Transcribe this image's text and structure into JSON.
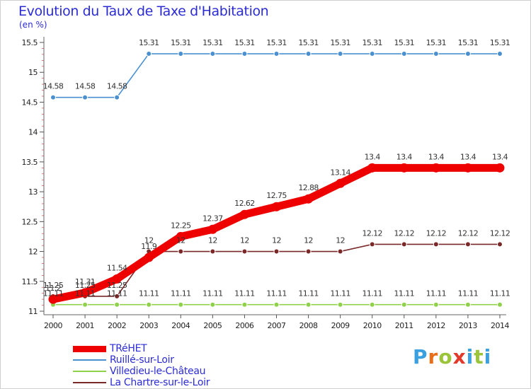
{
  "header": {
    "title": "Evolution du Taux de Taxe d'Habitation",
    "subtitle": "(en %)"
  },
  "chart_data": {
    "type": "line",
    "x": [
      "2000",
      "2001",
      "2002",
      "2003",
      "2004",
      "2005",
      "2006",
      "2007",
      "2008",
      "2009",
      "2010",
      "2011",
      "2012",
      "2013",
      "2014"
    ],
    "ylim": [
      11,
      15.5
    ],
    "yticks": [
      "11",
      "11.5",
      "12",
      "12.5",
      "13",
      "13.5",
      "14",
      "14.5",
      "15",
      "15.5"
    ],
    "grid": false,
    "legend_position": "bottom-left",
    "series": [
      {
        "name": "TRéHET",
        "color": "#ee0000",
        "values": [
          11.2,
          11.31,
          11.54,
          11.9,
          12.25,
          12.37,
          12.62,
          12.75,
          12.88,
          13.14,
          13.4,
          13.4,
          13.4,
          13.4,
          13.4
        ],
        "labels": [
          "11.2",
          "11.31",
          "11.54",
          "11.9",
          "12.25",
          "12.37",
          "12.62",
          "12.75",
          "12.88",
          "13.14",
          "13.4",
          "13.4",
          "13.4",
          "13.4",
          "13.4"
        ]
      },
      {
        "name": "Ruillé-sur-Loir",
        "color": "#4a90d0",
        "values": [
          14.58,
          14.58,
          14.58,
          15.31,
          15.31,
          15.31,
          15.31,
          15.31,
          15.31,
          15.31,
          15.31,
          15.31,
          15.31,
          15.31,
          15.31
        ],
        "labels": [
          "14.58",
          "14.58",
          "14.58",
          "15.31",
          "15.31",
          "15.31",
          "15.31",
          "15.31",
          "15.31",
          "15.31",
          "15.31",
          "15.31",
          "15.31",
          "15.31",
          "15.31"
        ]
      },
      {
        "name": "Villedieu-le-Château",
        "color": "#8fd24a",
        "values": [
          11.11,
          11.11,
          11.11,
          11.11,
          11.11,
          11.11,
          11.11,
          11.11,
          11.11,
          11.11,
          11.11,
          11.11,
          11.11,
          11.11,
          11.11
        ],
        "labels": [
          "11.11",
          "11.11",
          "11.11",
          "11.11",
          "11.11",
          "11.11",
          "11.11",
          "11.11",
          "11.11",
          "11.11",
          "11.11",
          "11.11",
          "11.11",
          "11.11",
          "11.11"
        ]
      },
      {
        "name": "La Chartre-sur-le-Loir",
        "color": "#7a2828",
        "values": [
          11.25,
          11.25,
          11.25,
          12,
          12,
          12,
          12,
          12,
          12,
          12,
          12.12,
          12.12,
          12.12,
          12.12,
          12.12
        ],
        "labels": [
          "11.25",
          "11.25",
          "11.25",
          "12",
          "12",
          "12",
          "12",
          "12",
          "12",
          "12",
          "12.12",
          "12.12",
          "12.12",
          "12.12",
          "12.12"
        ]
      }
    ]
  },
  "logo": {
    "letters": [
      "P",
      "r",
      "o",
      "x",
      "i",
      "t",
      "i"
    ],
    "colors": [
      "#3aa0e0",
      "#e86e1a",
      "#9ac43a",
      "#e23a2a",
      "#3aa0e0",
      "#9ac43a",
      "#3aa0e0"
    ]
  }
}
